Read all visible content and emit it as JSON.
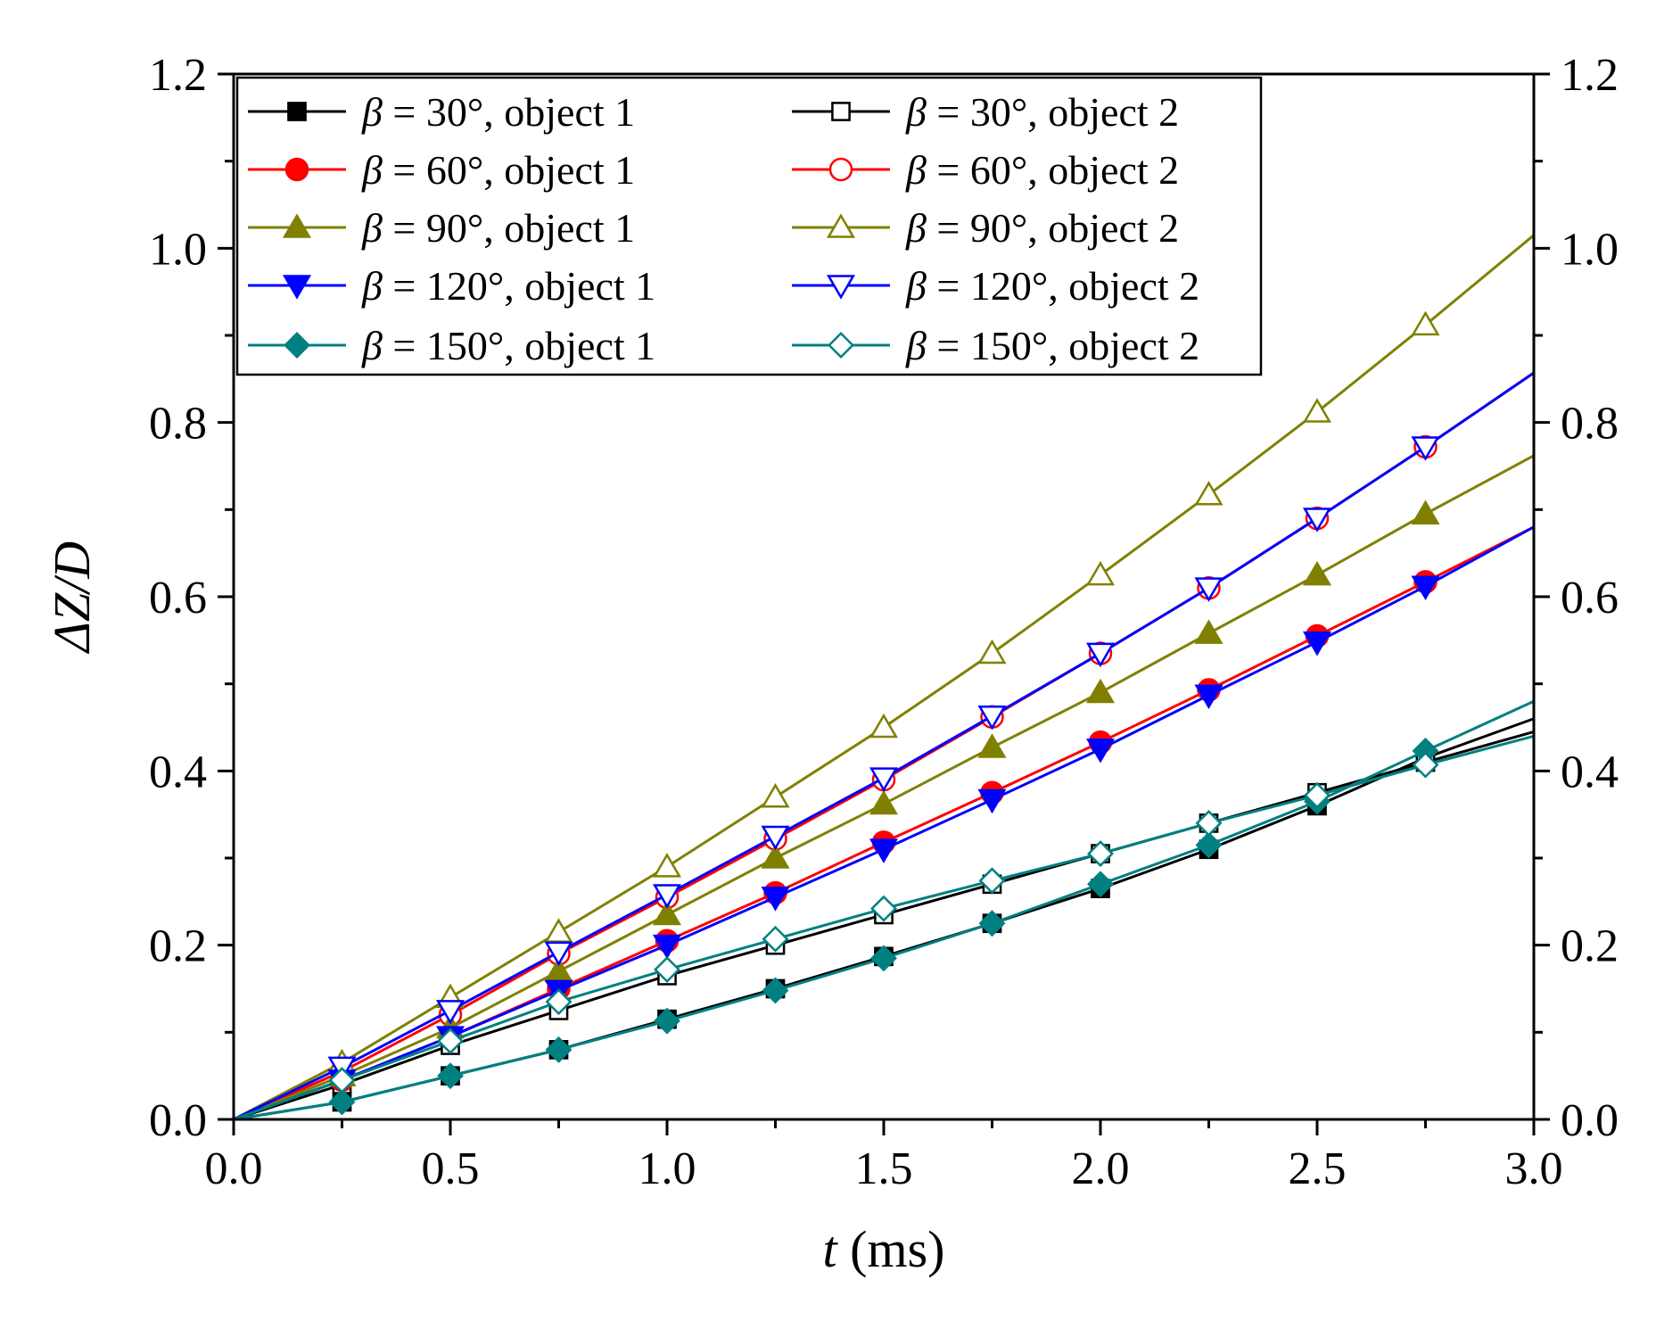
{
  "chart_data": {
    "type": "line",
    "title": "",
    "xlabel": "t (ms)",
    "xlabel_var": "t",
    "xlabel_unit": " (ms)",
    "ylabel": "ΔZ/D",
    "xlim": [
      0,
      3.0
    ],
    "ylim": [
      0,
      1.2
    ],
    "x_ticks": [
      "0.0",
      "0.5",
      "1.0",
      "1.5",
      "2.0",
      "2.5",
      "3.0"
    ],
    "y_ticks": [
      "0.0",
      "0.2",
      "0.4",
      "0.6",
      "0.8",
      "1.0",
      "1.2"
    ],
    "grid": false,
    "legend_position": "top-left",
    "x": [
      0,
      0.25,
      0.5,
      0.75,
      1.0,
      1.25,
      1.5,
      1.75,
      2.0,
      2.25,
      2.5,
      2.75,
      3.0
    ],
    "series": [
      {
        "name": "β = 30°,   object 1",
        "beta": "30°",
        "object": "object 1",
        "sep": ",   ",
        "color": "#000000",
        "marker": "square",
        "filled": true,
        "values": [
          0,
          0.02,
          0.05,
          0.08,
          0.115,
          0.15,
          0.187,
          0.225,
          0.265,
          0.31,
          0.36,
          0.415,
          0.46
        ]
      },
      {
        "name": "β = 30°,   object 2",
        "beta": "30°",
        "object": "object 2",
        "sep": ",   ",
        "color": "#000000",
        "marker": "square",
        "filled": false,
        "values": [
          0,
          0.04,
          0.085,
          0.125,
          0.165,
          0.2,
          0.235,
          0.27,
          0.305,
          0.34,
          0.375,
          0.41,
          0.445
        ]
      },
      {
        "name": "β = 60°,   object 1",
        "beta": "60°",
        "object": "object 1",
        "sep": ",   ",
        "color": "#ff0000",
        "marker": "circle",
        "filled": true,
        "values": [
          0,
          0.045,
          0.095,
          0.15,
          0.205,
          0.26,
          0.318,
          0.375,
          0.433,
          0.493,
          0.555,
          0.617,
          0.68
        ]
      },
      {
        "name": "β = 60°,   object 2",
        "beta": "60°",
        "object": "object 2",
        "sep": ",   ",
        "color": "#ff0000",
        "marker": "circle",
        "filled": false,
        "values": [
          0,
          0.055,
          0.12,
          0.19,
          0.255,
          0.322,
          0.39,
          0.462,
          0.535,
          0.61,
          0.69,
          0.772,
          0.857
        ]
      },
      {
        "name": "β = 90°,   object 1",
        "beta": "90°",
        "object": "object 1",
        "sep": ",   ",
        "color": "#808000",
        "marker": "triangle-up",
        "filled": true,
        "values": [
          0,
          0.05,
          0.105,
          0.17,
          0.235,
          0.3,
          0.362,
          0.427,
          0.49,
          0.558,
          0.625,
          0.695,
          0.762
        ]
      },
      {
        "name": "β = 90°,   object 2",
        "beta": "90°",
        "object": "object 2",
        "sep": ",   ",
        "color": "#808000",
        "marker": "triangle-up",
        "filled": false,
        "values": [
          0,
          0.065,
          0.14,
          0.215,
          0.29,
          0.37,
          0.45,
          0.535,
          0.625,
          0.717,
          0.812,
          0.912,
          1.015
        ]
      },
      {
        "name": "β = 120°, object 1",
        "beta": "120°",
        "object": "object 1",
        "sep": ", ",
        "color": "#0000ff",
        "marker": "triangle-down",
        "filled": true,
        "values": [
          0,
          0.045,
          0.095,
          0.148,
          0.2,
          0.255,
          0.31,
          0.367,
          0.425,
          0.487,
          0.548,
          0.612,
          0.68
        ]
      },
      {
        "name": "β = 120°, object 2",
        "beta": "120°",
        "object": "object 2",
        "sep": ", ",
        "color": "#0000ff",
        "marker": "triangle-down",
        "filled": false,
        "values": [
          0,
          0.06,
          0.125,
          0.192,
          0.258,
          0.325,
          0.392,
          0.463,
          0.535,
          0.61,
          0.69,
          0.772,
          0.857
        ]
      },
      {
        "name": "β = 150°, object 1",
        "beta": "150°",
        "object": "object 1",
        "sep": ", ",
        "color": "#008080",
        "marker": "diamond",
        "filled": true,
        "values": [
          0,
          0.02,
          0.05,
          0.08,
          0.113,
          0.148,
          0.185,
          0.225,
          0.27,
          0.315,
          0.365,
          0.423,
          0.48
        ]
      },
      {
        "name": "β = 150°, object 2",
        "beta": "150°",
        "object": "object 2",
        "sep": ", ",
        "color": "#008080",
        "marker": "diamond",
        "filled": false,
        "values": [
          0,
          0.045,
          0.09,
          0.135,
          0.172,
          0.207,
          0.242,
          0.274,
          0.305,
          0.34,
          0.372,
          0.407,
          0.44
        ]
      }
    ]
  }
}
